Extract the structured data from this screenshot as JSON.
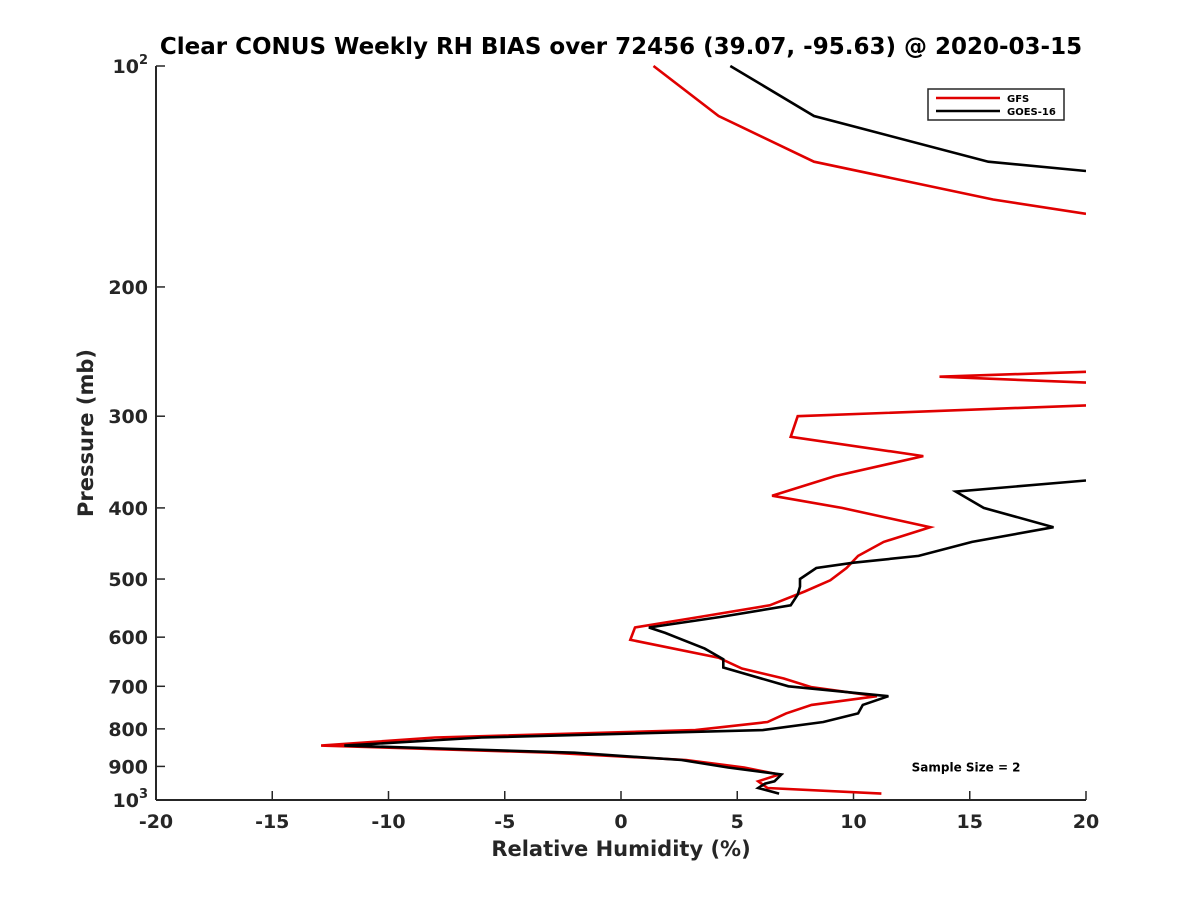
{
  "chart_data": {
    "type": "line",
    "title": "Clear CONUS Weekly RH BIAS over 72456 (39.07, -95.63) @ 2020-03-15",
    "xlabel": "Relative Humidity (%)",
    "ylabel": "Pressure (mb)",
    "xlim": [
      -20,
      20
    ],
    "ylim": [
      100,
      1000
    ],
    "yscale": "log",
    "y_reversed": true,
    "grid": false,
    "legend_position": "top-right",
    "x_ticks": [
      -20,
      -15,
      -10,
      -5,
      0,
      5,
      10,
      15,
      20
    ],
    "x_tick_labels": [
      "-20",
      "-15",
      "-10",
      "-5",
      "0",
      "5",
      "10",
      "15",
      "20"
    ],
    "y_ticks": [
      {
        "value": 100,
        "base": "10",
        "exp": "2"
      },
      {
        "value": 200,
        "label": "200"
      },
      {
        "value": 300,
        "label": "300"
      },
      {
        "value": 400,
        "label": "400"
      },
      {
        "value": 500,
        "label": "500"
      },
      {
        "value": 600,
        "label": "600"
      },
      {
        "value": 700,
        "label": "700"
      },
      {
        "value": 800,
        "label": "800"
      },
      {
        "value": 900,
        "label": "900"
      },
      {
        "value": 1000,
        "base": "10",
        "exp": "3"
      }
    ],
    "series": [
      {
        "name": "GFS",
        "color": "#e00000",
        "segments": [
          [
            {
              "x": 1.4,
              "p": 100
            },
            {
              "x": 4.2,
              "p": 117
            },
            {
              "x": 8.3,
              "p": 135
            },
            {
              "x": 16.0,
              "p": 152
            },
            {
              "x": 20.0,
              "p": 159
            }
          ],
          [
            {
              "x": 20.0,
              "p": 261
            },
            {
              "x": 13.7,
              "p": 265
            },
            {
              "x": 20.0,
              "p": 270
            }
          ],
          [
            {
              "x": 20.0,
              "p": 290
            },
            {
              "x": 7.6,
              "p": 300
            },
            {
              "x": 7.3,
              "p": 320
            },
            {
              "x": 13.0,
              "p": 340
            },
            {
              "x": 9.2,
              "p": 362
            },
            {
              "x": 6.5,
              "p": 385
            },
            {
              "x": 9.5,
              "p": 400
            },
            {
              "x": 13.3,
              "p": 425
            },
            {
              "x": 11.3,
              "p": 445
            },
            {
              "x": 10.2,
              "p": 465
            },
            {
              "x": 9.7,
              "p": 483
            },
            {
              "x": 9.0,
              "p": 502
            },
            {
              "x": 7.9,
              "p": 520
            },
            {
              "x": 6.4,
              "p": 543
            },
            {
              "x": 3.4,
              "p": 563
            },
            {
              "x": 0.6,
              "p": 582
            },
            {
              "x": 0.4,
              "p": 605
            },
            {
              "x": 4.2,
              "p": 640
            },
            {
              "x": 5.2,
              "p": 662
            },
            {
              "x": 7.0,
              "p": 683
            },
            {
              "x": 8.2,
              "p": 702
            },
            {
              "x": 11.0,
              "p": 722
            },
            {
              "x": 8.2,
              "p": 742
            },
            {
              "x": 7.1,
              "p": 762
            },
            {
              "x": 6.3,
              "p": 783
            },
            {
              "x": 3.2,
              "p": 803
            },
            {
              "x": -8.0,
              "p": 822
            },
            {
              "x": -12.9,
              "p": 843
            },
            {
              "x": -3.0,
              "p": 862
            },
            {
              "x": 2.8,
              "p": 882
            },
            {
              "x": 5.3,
              "p": 903
            },
            {
              "x": 6.8,
              "p": 923
            },
            {
              "x": 5.9,
              "p": 943
            },
            {
              "x": 6.3,
              "p": 963
            },
            {
              "x": 11.2,
              "p": 980
            }
          ]
        ]
      },
      {
        "name": "GOES-16",
        "color": "#000000",
        "segments": [
          [
            {
              "x": 4.7,
              "p": 100
            },
            {
              "x": 8.3,
              "p": 117
            },
            {
              "x": 15.8,
              "p": 135
            },
            {
              "x": 20.0,
              "p": 139
            }
          ],
          [
            {
              "x": 20.0,
              "p": 367
            },
            {
              "x": 14.4,
              "p": 380
            },
            {
              "x": 15.6,
              "p": 400
            },
            {
              "x": 18.6,
              "p": 425
            },
            {
              "x": 15.1,
              "p": 445
            },
            {
              "x": 12.8,
              "p": 465
            },
            {
              "x": 10.0,
              "p": 475
            },
            {
              "x": 8.4,
              "p": 483
            },
            {
              "x": 7.7,
              "p": 500
            },
            {
              "x": 7.7,
              "p": 512
            },
            {
              "x": 7.6,
              "p": 525
            },
            {
              "x": 7.3,
              "p": 543
            },
            {
              "x": 4.3,
              "p": 563
            },
            {
              "x": 1.2,
              "p": 582
            },
            {
              "x": 1.9,
              "p": 592
            },
            {
              "x": 3.6,
              "p": 622
            },
            {
              "x": 4.4,
              "p": 643
            },
            {
              "x": 4.4,
              "p": 660
            },
            {
              "x": 7.2,
              "p": 700
            },
            {
              "x": 11.5,
              "p": 722
            },
            {
              "x": 10.4,
              "p": 742
            },
            {
              "x": 10.2,
              "p": 762
            },
            {
              "x": 8.7,
              "p": 783
            },
            {
              "x": 6.1,
              "p": 803
            },
            {
              "x": -6.0,
              "p": 822
            },
            {
              "x": -11.9,
              "p": 843
            },
            {
              "x": -2.0,
              "p": 862
            },
            {
              "x": 2.6,
              "p": 882
            },
            {
              "x": 4.6,
              "p": 903
            },
            {
              "x": 6.9,
              "p": 923
            },
            {
              "x": 6.6,
              "p": 943
            },
            {
              "x": 6.2,
              "p": 950
            },
            {
              "x": 5.9,
              "p": 963
            },
            {
              "x": 6.8,
              "p": 980
            }
          ]
        ]
      }
    ],
    "annotations": [
      {
        "text": "Sample Size = 2",
        "x": 12.5,
        "p": 900
      }
    ]
  }
}
